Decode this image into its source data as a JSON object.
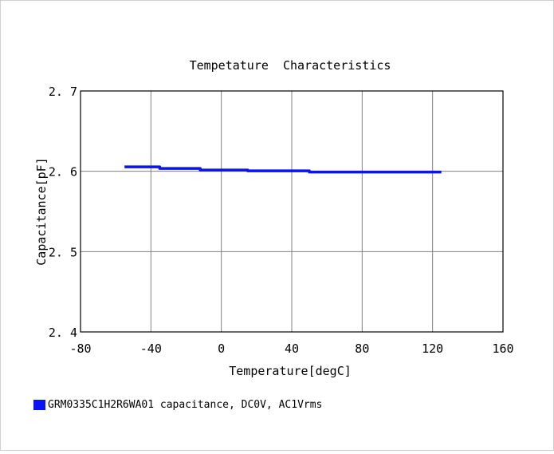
{
  "chart_data": {
    "type": "line",
    "title": "Tempetature  Characteristics",
    "xlabel": "Temperature[degC]",
    "ylabel": "Capacitance[pF]",
    "xlim": [
      -80,
      160
    ],
    "ylim": [
      2.4,
      2.7
    ],
    "x_ticks": [
      "-80",
      "-40",
      "0",
      "40",
      "80",
      "120",
      "160"
    ],
    "y_ticks": [
      "2.4",
      "2.5",
      "2.6",
      "2.7"
    ],
    "grid": true,
    "legend_position": "bottom-left",
    "series": [
      {
        "name": "GRM0335C1H2R6WA01 capacitance, DC0V, AC1Vrms",
        "color": "#0a14f0",
        "x": [
          -55,
          -35,
          -35,
          -12,
          -12,
          15,
          15,
          50,
          50,
          125
        ],
        "y": [
          2.6055,
          2.6055,
          2.6035,
          2.6035,
          2.6015,
          2.6015,
          2.6005,
          2.6005,
          2.599,
          2.599
        ]
      }
    ]
  }
}
